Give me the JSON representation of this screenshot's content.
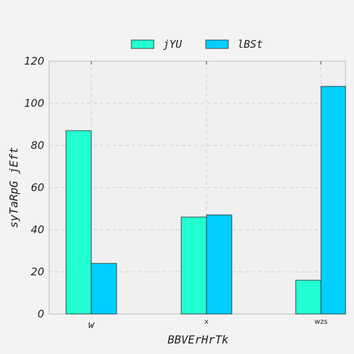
{
  "chart_data": {
    "type": "bar",
    "categories": [
      "w",
      "x",
      "wzs"
    ],
    "series": [
      {
        "name": "jYU",
        "values": [
          87,
          46,
          16
        ],
        "color": "#22ffd3"
      },
      {
        "name": "lBSt",
        "values": [
          24,
          47,
          108
        ],
        "color": "#00cfff"
      }
    ],
    "xlabel": "BBVErHrTk",
    "ylabel": "syTaRpG jEft",
    "ylim": [
      0,
      120
    ],
    "yticks": [
      0,
      20,
      40,
      60,
      80,
      100,
      120
    ],
    "grid": true,
    "legend_position": "top-center"
  }
}
